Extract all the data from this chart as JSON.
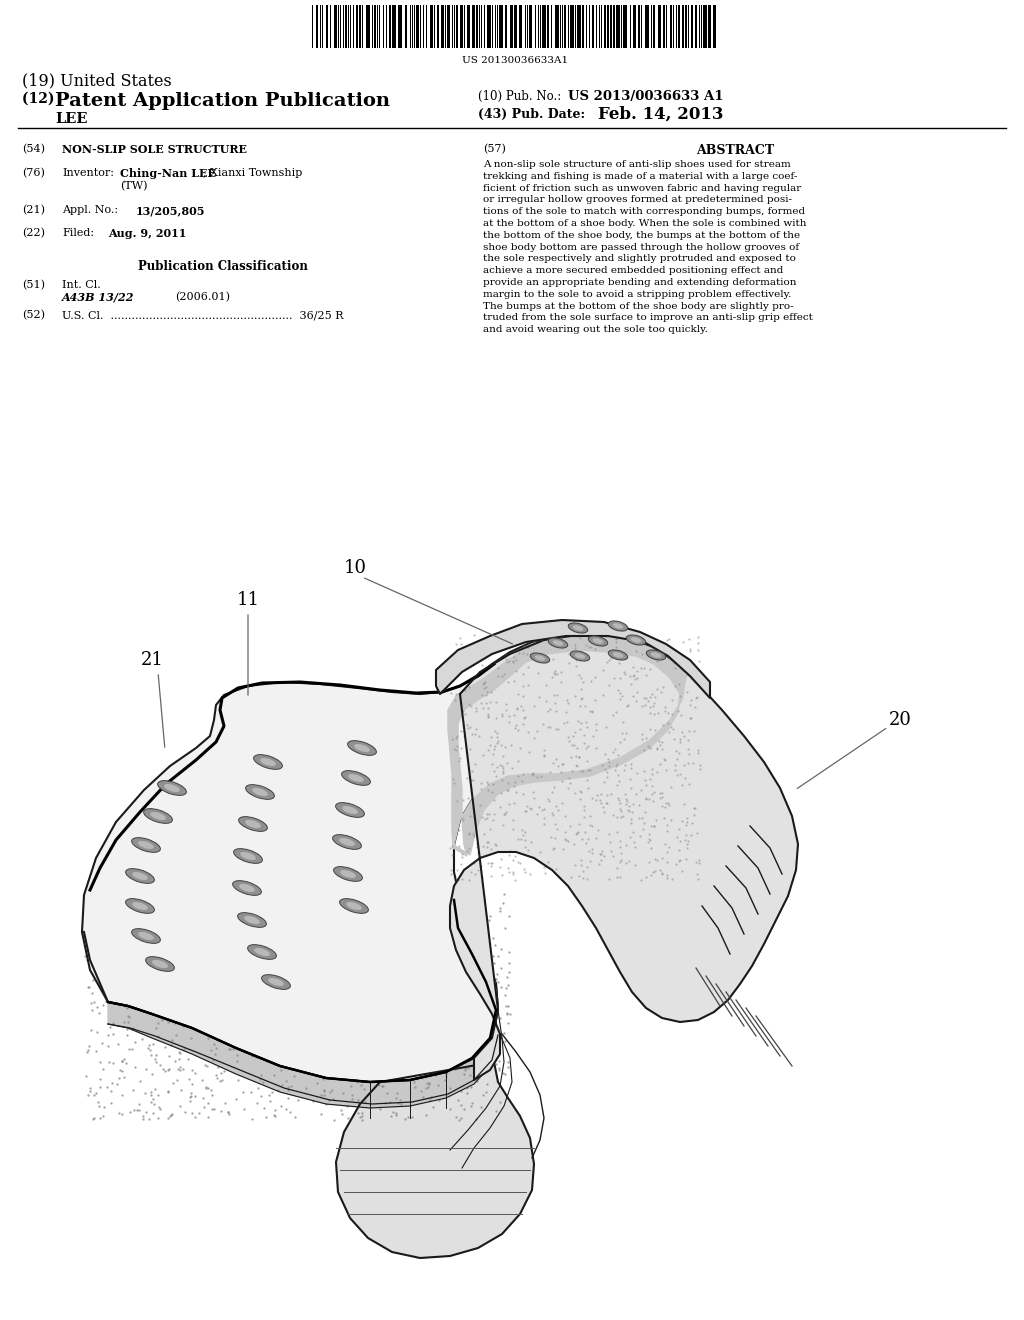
{
  "background_color": "#ffffff",
  "barcode_text": "US 20130036633A1",
  "title_19": "(19) United States",
  "title_12_prefix": "(12) ",
  "title_12_main": "Patent Application Publication",
  "pub_no_label": "(10) Pub. No.:",
  "pub_no_value": "US 2013/0036633 A1",
  "pub_date_label": "(43) Pub. Date:",
  "pub_date_value": "Feb. 14, 2013",
  "inventor_name": "LEE",
  "section_54_label": "(54)",
  "section_54_text": "NON-SLIP SOLE STRUCTURE",
  "section_76_label": "(76)",
  "section_21_label": "(21)",
  "section_22_label": "(22)",
  "pub_class_title": "Publication Classification",
  "section_51_label": "(51)",
  "section_52_label": "(52)",
  "section_57_label": "(57)",
  "section_57_title": "ABSTRACT",
  "abstract_lines": [
    "A non-slip sole structure of anti-slip shoes used for stream",
    "trekking and fishing is made of a material with a large coef-",
    "ficient of friction such as unwoven fabric and having regular",
    "or irregular hollow grooves formed at predetermined posi-",
    "tions of the sole to match with corresponding bumps, formed",
    "at the bottom of a shoe body. When the sole is combined with",
    "the bottom of the shoe body, the bumps at the bottom of the",
    "shoe body bottom are passed through the hollow grooves of",
    "the sole respectively and slightly protruded and exposed to",
    "achieve a more secured embedded positioning effect and",
    "provide an appropriate bending and extending deformation",
    "margin to the sole to avoid a stripping problem effectively.",
    "The bumps at the bottom of the shoe body are slightly pro-",
    "truded from the sole surface to improve an anti-slip grip effect",
    "and avoid wearing out the sole too quickly."
  ],
  "diagram_label_10": "10",
  "diagram_label_11": "11",
  "diagram_label_20": "20",
  "diagram_label_21": "21",
  "outline_color": "#1a1a1a",
  "sole_face_color": "#f2f2f2",
  "sole_edge_color": "#d0d0d0",
  "shoe_upper_color": "#e0e0e0",
  "toe_top_color": "#d5d5d5",
  "slot_color": "#909090",
  "slot_inner_color": "#b8b8b8"
}
